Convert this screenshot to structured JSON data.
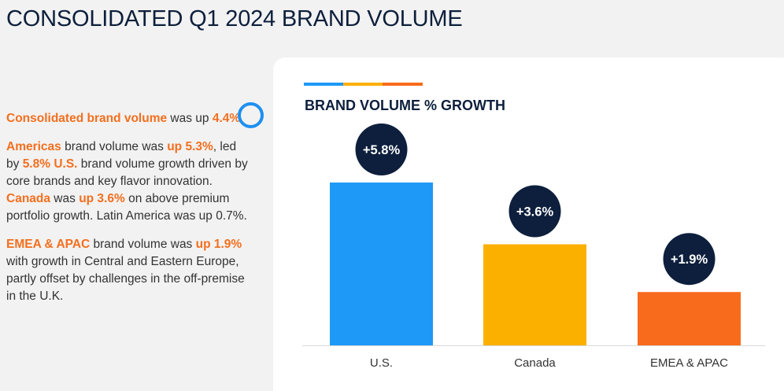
{
  "page": {
    "title": "CONSOLIDATED Q1 2024 BRAND VOLUME"
  },
  "commentary": {
    "p1": {
      "a": "Consolidated brand volume",
      "b": " was up ",
      "c": "4.4%."
    },
    "p2": {
      "a": "Americas",
      "b": " brand volume was ",
      "c": "up 5.3%",
      "d": ", led by ",
      "e": "5.8% U.S.",
      "f": " brand volume growth driven by core brands and key flavor innovation.  ",
      "g": "Canada",
      "h": " was ",
      "i": "up 3.6%",
      "j": " on above premium portfolio growth.  Latin America was up 0.7%."
    },
    "p3": {
      "a": "EMEA & APAC",
      "b": " brand volume was ",
      "c": "up 1.9%",
      "d": " with growth in Central and Eastern Europe, partly offset by challenges in the off-premise in the U.K."
    }
  },
  "colors": {
    "blue": "#1e99f7",
    "yellow": "#fbb000",
    "orange": "#f86b1c",
    "navy": "#0d1f3c"
  },
  "icons": {
    "ring": "ring-icon"
  },
  "chart_data": {
    "type": "bar",
    "title": "BRAND VOLUME % GROWTH",
    "xlabel": "",
    "ylabel": "",
    "categories": [
      "U.S.",
      "Canada",
      "EMEA & APAC"
    ],
    "values": [
      5.8,
      3.6,
      1.9
    ],
    "data_labels": [
      "+5.8%",
      "+3.6%",
      "+1.9%"
    ],
    "bar_colors": [
      "#1e99f7",
      "#fbb000",
      "#f86b1c"
    ],
    "ylim": [
      0,
      5.8
    ],
    "grid": false,
    "legend": "none"
  }
}
